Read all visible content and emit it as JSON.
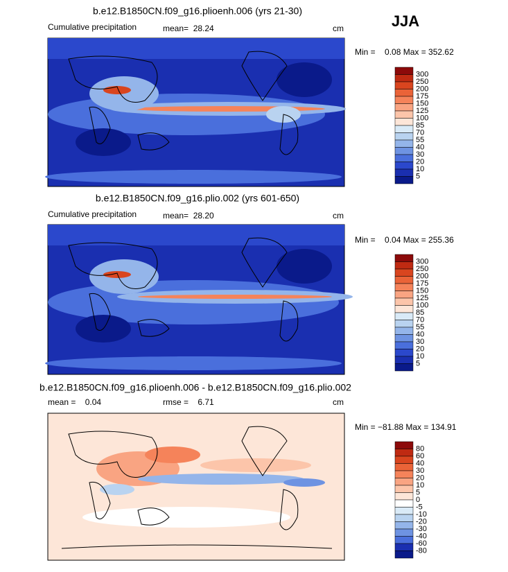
{
  "season": "JJA",
  "panels": [
    {
      "title": "b.e12.B1850CN.f09_g16.plioenh.006 (yrs 21-30)",
      "subtitle": "Cumulative precipitation",
      "stat1": "mean=  28.24",
      "units": "cm",
      "range": "Min =    0.08 Max = 352.62"
    },
    {
      "title": "b.e12.B1850CN.f09_g16.plio.002 (yrs 601-650)",
      "subtitle": "Cumulative precipitation",
      "stat1": "mean=  28.20",
      "units": "cm",
      "range": "Min =    0.04 Max = 255.36"
    },
    {
      "title": "b.e12.B1850CN.f09_g16.plioenh.006 - b.e12.B1850CN.f09_g16.plio.002",
      "stat0": "mean =    0.04",
      "stat1": "rmse =    6.71",
      "units": "cm",
      "range": "Min = −81.88 Max = 134.91"
    }
  ],
  "colorbars": [
    {
      "levels": [
        300,
        250,
        200,
        175,
        150,
        125,
        100,
        85,
        70,
        55,
        40,
        30,
        20,
        10,
        5
      ],
      "colors": [
        "#8c0a0a",
        "#bf2a12",
        "#d9451f",
        "#ea6338",
        "#f5835a",
        "#f9a482",
        "#fcc5aa",
        "#fde6d8",
        "#d9eaf7",
        "#b9d3f0",
        "#94b5ea",
        "#6e93e2",
        "#4a6fdc",
        "#2b48cc",
        "#1a2fb0",
        "#0a1a8a"
      ]
    },
    {
      "levels": [
        80,
        60,
        40,
        30,
        20,
        10,
        5,
        0,
        -5,
        -10,
        -20,
        -30,
        -40,
        -60,
        -80
      ],
      "colors": [
        "#8c0a0a",
        "#bf2a12",
        "#d9451f",
        "#ea6338",
        "#f5835a",
        "#f9a482",
        "#fcc5aa",
        "#fde6d8",
        "#ffffff",
        "#d9eaf7",
        "#b9d3f0",
        "#94b5ea",
        "#6e93e2",
        "#4a6fdc",
        "#1a2fb0",
        "#0a1a8a"
      ]
    }
  ]
}
